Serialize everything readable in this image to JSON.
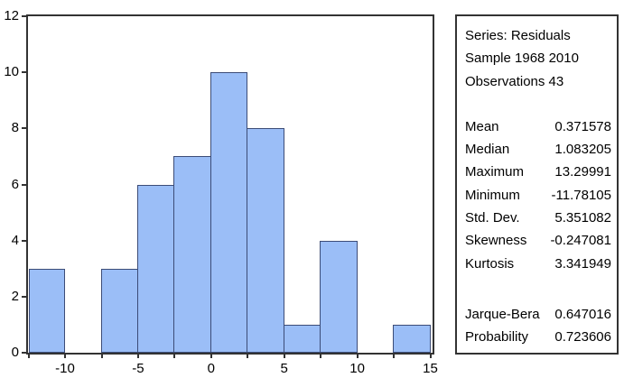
{
  "figure": {
    "background": "#ffffff",
    "bar_fill": "#9bbef7",
    "bar_border": "#3c4c77",
    "frame_color": "#333333"
  },
  "chart_data": {
    "type": "bar",
    "subtype": "histogram",
    "title": "",
    "xlabel": "",
    "ylabel": "",
    "xlim": [
      -12.65,
      15.2
    ],
    "ylim": [
      0,
      12
    ],
    "y_ticks": [
      0,
      2,
      4,
      6,
      8,
      10,
      12
    ],
    "x_labeled_ticks": [
      -10,
      -5,
      0,
      5,
      10,
      15
    ],
    "x_minor_tick_step": 2.5,
    "bin_width": 2.5,
    "grid": false,
    "legend_position": "none",
    "bins": [
      {
        "left": -12.5,
        "count": 3
      },
      {
        "left": -10.0,
        "count": 0
      },
      {
        "left": -7.5,
        "count": 3
      },
      {
        "left": -5.0,
        "count": 6
      },
      {
        "left": -2.5,
        "count": 7
      },
      {
        "left": 0.0,
        "count": 10
      },
      {
        "left": 2.5,
        "count": 8
      },
      {
        "left": 5.0,
        "count": 1
      },
      {
        "left": 7.5,
        "count": 4
      },
      {
        "left": 10.0,
        "count": 0
      },
      {
        "left": 12.5,
        "count": 1
      }
    ]
  },
  "stats_panel": {
    "header": [
      "Series: Residuals",
      "Sample 1968 2010",
      "Observations 43"
    ],
    "moments": [
      {
        "label": "Mean",
        "value": "0.371578"
      },
      {
        "label": "Median",
        "value": "1.083205"
      },
      {
        "label": "Maximum",
        "value": "13.29991"
      },
      {
        "label": "Minimum",
        "value": "-11.78105"
      },
      {
        "label": "Std. Dev.",
        "value": "5.351082"
      },
      {
        "label": "Skewness",
        "value": "-0.247081"
      },
      {
        "label": "Kurtosis",
        "value": "3.341949"
      }
    ],
    "tests": [
      {
        "label": "Jarque-Bera",
        "value": "0.647016"
      },
      {
        "label": "Probability",
        "value": "0.723606"
      }
    ]
  }
}
